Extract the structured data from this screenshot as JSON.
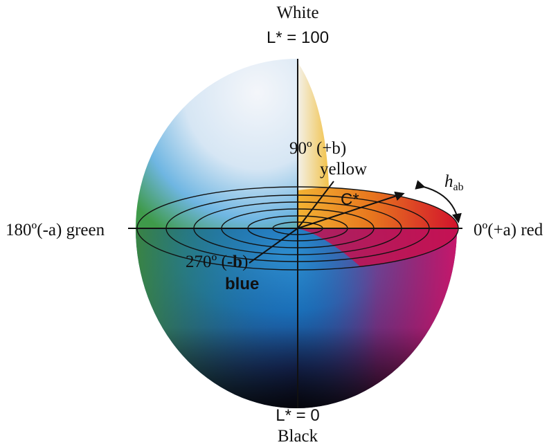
{
  "labels": {
    "white": "White",
    "l_top": "L* = 100",
    "plus_b": "90º (+b)",
    "yellow": "yellow",
    "chroma": "C*",
    "hue": {
      "symbol": "h",
      "subscript": "ab"
    },
    "minus_a": "180º(-a) green",
    "plus_a": "0º(+a) red",
    "minus_b": {
      "prefix": "270º (",
      "bold": "-b",
      "suffix": ")"
    },
    "blue": "blue",
    "l_bottom": "L* = 0",
    "black": "Black"
  }
}
